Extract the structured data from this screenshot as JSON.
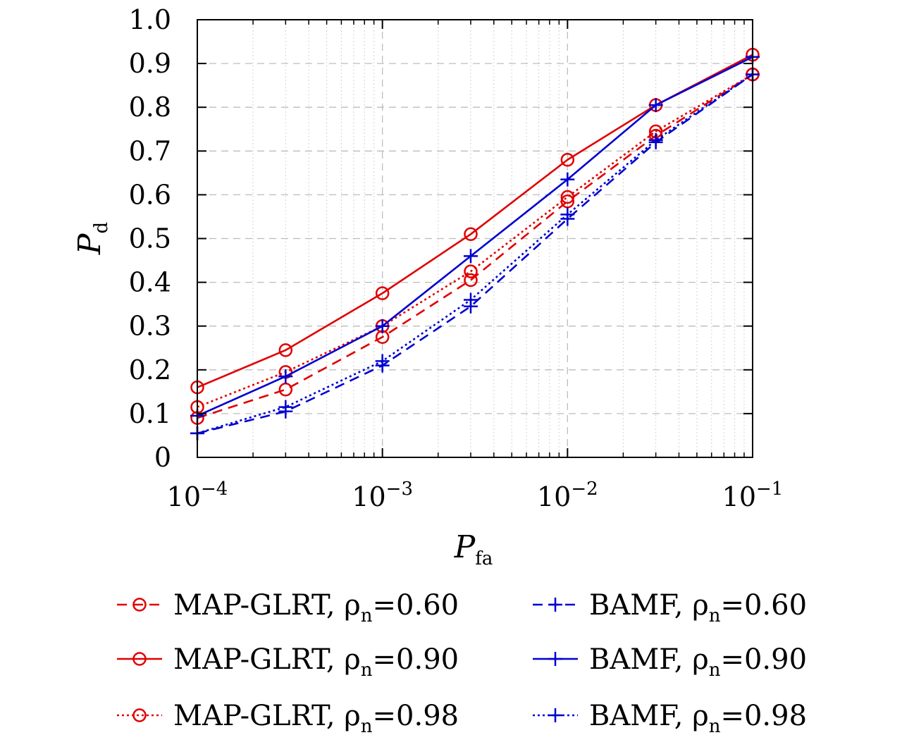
{
  "chart_data": {
    "type": "line",
    "xlabel": {
      "symbol": "P",
      "subscript": "fa"
    },
    "ylabel": {
      "symbol": "P",
      "subscript": "d"
    },
    "xscale": "log",
    "xlim": [
      0.0001,
      0.1
    ],
    "ylim": [
      0,
      1.0
    ],
    "grid": true,
    "x_ticks": [
      {
        "base": "10",
        "exp": "−4",
        "value": 0.0001
      },
      {
        "base": "10",
        "exp": "−3",
        "value": 0.001
      },
      {
        "base": "10",
        "exp": "−2",
        "value": 0.01
      },
      {
        "base": "10",
        "exp": "−1",
        "value": 0.1
      }
    ],
    "y_ticks": [
      {
        "label": "0",
        "value": 0
      },
      {
        "label": "0.1",
        "value": 0.1
      },
      {
        "label": "0.2",
        "value": 0.2
      },
      {
        "label": "0.3",
        "value": 0.3
      },
      {
        "label": "0.4",
        "value": 0.4
      },
      {
        "label": "0.5",
        "value": 0.5
      },
      {
        "label": "0.6",
        "value": 0.6
      },
      {
        "label": "0.7",
        "value": 0.7
      },
      {
        "label": "0.8",
        "value": 0.8
      },
      {
        "label": "0.9",
        "value": 0.9
      },
      {
        "label": "1.0",
        "value": 1.0
      }
    ],
    "x": [
      0.0001,
      0.0003,
      0.001,
      0.003,
      0.01,
      0.03,
      0.1
    ],
    "legend_position": "bottom",
    "series": [
      {
        "name": "MAP-GLRT, ρ",
        "sub": "n",
        "suffix": "=0.60",
        "color": "#e00000",
        "dash": "dashed",
        "marker": "circle",
        "values": [
          0.09,
          0.155,
          0.275,
          0.405,
          0.585,
          0.735,
          0.875
        ]
      },
      {
        "name": "MAP-GLRT, ρ",
        "sub": "n",
        "suffix": "=0.90",
        "color": "#e00000",
        "dash": "solid",
        "marker": "circle",
        "values": [
          0.16,
          0.245,
          0.375,
          0.51,
          0.68,
          0.805,
          0.92
        ]
      },
      {
        "name": "MAP-GLRT, ρ",
        "sub": "n",
        "suffix": "=0.98",
        "color": "#e00000",
        "dash": "dotted",
        "marker": "circle",
        "values": [
          0.115,
          0.195,
          0.3,
          0.425,
          0.595,
          0.745,
          0.875
        ]
      },
      {
        "name": "BAMF, ρ",
        "sub": "n",
        "suffix": "=0.60",
        "color": "#0000d0",
        "dash": "dashed",
        "marker": "plus",
        "values": [
          0.055,
          0.105,
          0.21,
          0.345,
          0.545,
          0.72,
          0.875
        ]
      },
      {
        "name": "BAMF, ρ",
        "sub": "n",
        "suffix": "=0.90",
        "color": "#0000d0",
        "dash": "solid",
        "marker": "plus",
        "values": [
          0.095,
          0.185,
          0.3,
          0.46,
          0.635,
          0.805,
          0.915
        ]
      },
      {
        "name": "BAMF, ρ",
        "sub": "n",
        "suffix": "=0.98",
        "color": "#0000d0",
        "dash": "dotted",
        "marker": "plus",
        "values": [
          0.055,
          0.115,
          0.22,
          0.36,
          0.555,
          0.725,
          0.875
        ]
      }
    ]
  }
}
